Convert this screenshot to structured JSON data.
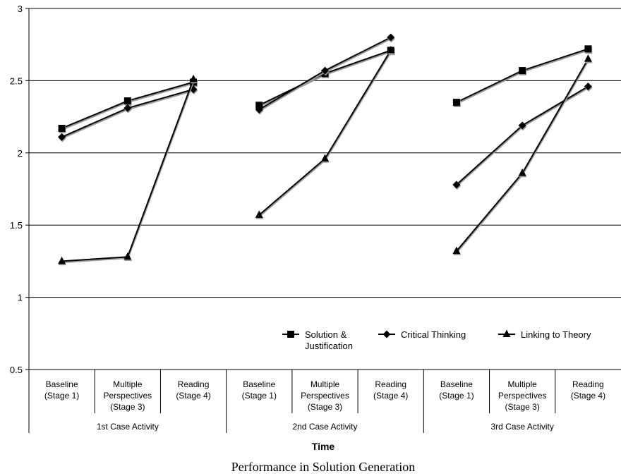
{
  "chart_data": {
    "type": "line",
    "ylim": [
      0.5,
      3
    ],
    "yticks": [
      "0.5",
      "1",
      "1.5",
      "2",
      "2.5",
      "3"
    ],
    "grid": true,
    "legend_position": "bottom-right",
    "xlabel": "Time",
    "caption": "Performance in Solution Generation",
    "groups": [
      {
        "label": "1st Case Activity",
        "categories": [
          [
            "Baseline",
            "(Stage 1)"
          ],
          [
            "Multiple",
            "Perspectives",
            "(Stage 3)"
          ],
          [
            "Reading",
            "(Stage 4)"
          ]
        ]
      },
      {
        "label": "2nd Case Activity",
        "categories": [
          [
            "Baseline",
            "(Stage 1)"
          ],
          [
            "Multiple",
            "Perspectives",
            "(Stage 3)"
          ],
          [
            "Reading",
            "(Stage 4)"
          ]
        ]
      },
      {
        "label": "3rd Case Activity",
        "categories": [
          [
            "Baseline",
            "(Stage 1)"
          ],
          [
            "Multiple",
            "Perspectives",
            "(Stage 3)"
          ],
          [
            "Reading",
            "(Stage 4)"
          ]
        ]
      }
    ],
    "series": [
      {
        "name": [
          "Solution &",
          "Justification"
        ],
        "marker": "square",
        "values": [
          [
            2.17,
            2.36,
            2.49
          ],
          [
            2.33,
            2.55,
            2.71
          ],
          [
            2.35,
            2.57,
            2.72
          ]
        ]
      },
      {
        "name": [
          "Critical Thinking"
        ],
        "marker": "diamond",
        "values": [
          [
            2.11,
            2.31,
            2.44
          ],
          [
            2.3,
            2.57,
            2.8
          ],
          [
            1.78,
            2.19,
            2.46
          ]
        ]
      },
      {
        "name": [
          "Linking to Theory"
        ],
        "marker": "triangle",
        "values": [
          [
            1.25,
            1.28,
            2.51
          ],
          [
            1.57,
            1.96,
            2.71
          ],
          [
            1.32,
            1.86,
            2.65
          ]
        ]
      }
    ],
    "colors": {
      "line": "#000000",
      "shadow": "#9a9a9a",
      "grid": "#000000"
    }
  }
}
